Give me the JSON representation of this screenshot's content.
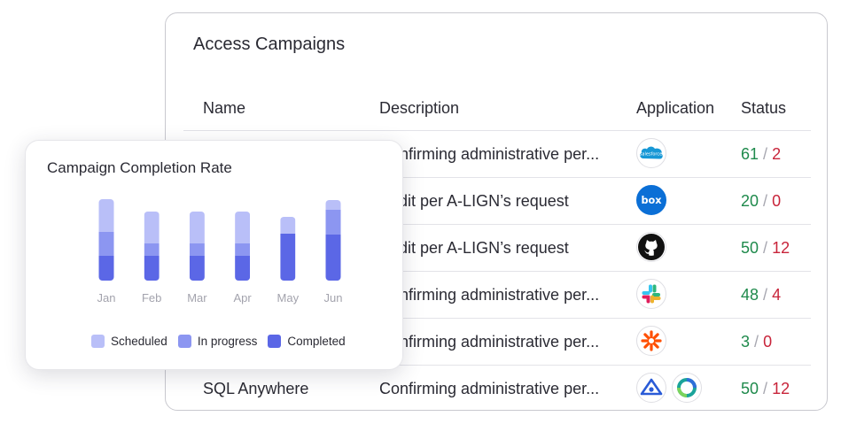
{
  "table": {
    "title": "Access Campaigns",
    "headers": {
      "name": "Name",
      "description": "Description",
      "application": "Application",
      "status": "Status"
    },
    "rows": [
      {
        "name": "",
        "description": "Confirming administrative per...",
        "apps": [
          "salesforce-icon"
        ],
        "completed": "61",
        "failed": "2"
      },
      {
        "name": "",
        "description": "Audit per A-LIGN’s request",
        "apps": [
          "box-icon"
        ],
        "completed": "20",
        "failed": "0"
      },
      {
        "name": "",
        "description": "Audit per A-LIGN’s request",
        "apps": [
          "github-icon"
        ],
        "completed": "50",
        "failed": "12"
      },
      {
        "name": "",
        "description": "Confirming administrative per...",
        "apps": [
          "slack-icon"
        ],
        "completed": "48",
        "failed": "4"
      },
      {
        "name": "",
        "description": "Confirming administrative per...",
        "apps": [
          "zapier-icon"
        ],
        "completed": "3",
        "failed": "0"
      },
      {
        "name": "SQL Anywhere",
        "description": "Confirming administrative per...",
        "apps": [
          "eye-app-icon",
          "ring-app-icon"
        ],
        "completed": "50",
        "failed": "12"
      }
    ],
    "status_separator": "/"
  },
  "chart_data": {
    "type": "bar",
    "title": "Campaign Completion Rate",
    "categories": [
      "Jan",
      "Feb",
      "Mar",
      "Apr",
      "May",
      "Jun"
    ],
    "stacked": true,
    "series": [
      {
        "name": "Completed",
        "color": "#5b67e6",
        "values": [
          28,
          28,
          28,
          28,
          53,
          52
        ]
      },
      {
        "name": "In progress",
        "color": "#8c96f1",
        "values": [
          27,
          14,
          14,
          14,
          0,
          28
        ]
      },
      {
        "name": "Scheduled",
        "color": "#b9bff8",
        "values": [
          37,
          36,
          36,
          36,
          19,
          11
        ]
      }
    ],
    "legend_order": [
      "Scheduled",
      "In progress",
      "Completed"
    ],
    "ylim": [
      0,
      92
    ],
    "grid": false,
    "legend": "bottom"
  },
  "colors": {
    "completed_status": "#1f8a4c",
    "failed_status": "#c8243a"
  }
}
